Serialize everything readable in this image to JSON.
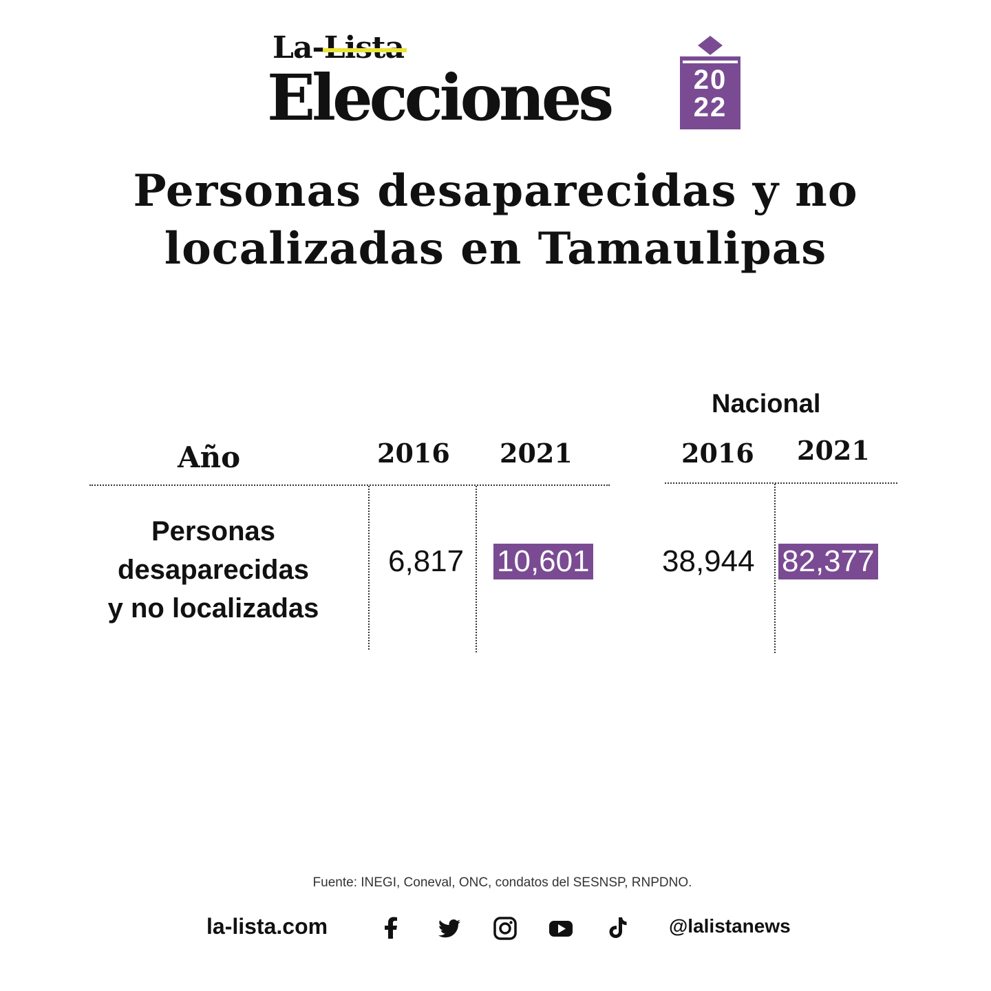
{
  "brand": {
    "prefix": "La-",
    "struck": "Lista",
    "name": "Elecciones",
    "year": "2022",
    "accent": "#7a4b93",
    "highlight": "#e9e33a"
  },
  "title": "Personas desaparecidas y no localizadas en Tamaulipas",
  "table": {
    "group_label": "Nacional",
    "row_header": "Año",
    "columns": [
      "2016",
      "2021",
      "2016",
      "2021"
    ],
    "row": {
      "label": "Personas desaparecidas y no localizadas",
      "values": [
        "6,817",
        "10,601",
        "38,944",
        "82,377"
      ],
      "highlighted": [
        false,
        true,
        false,
        true
      ]
    }
  },
  "footer": {
    "source": "Fuente: INEGI, Coneval, ONC, condatos del  SESNSP, RNPDNO.",
    "site": "la-lista.com",
    "handle": "@lalistanews",
    "social_icons": [
      "facebook-icon",
      "twitter-icon",
      "instagram-icon",
      "youtube-icon",
      "tiktok-icon"
    ]
  }
}
